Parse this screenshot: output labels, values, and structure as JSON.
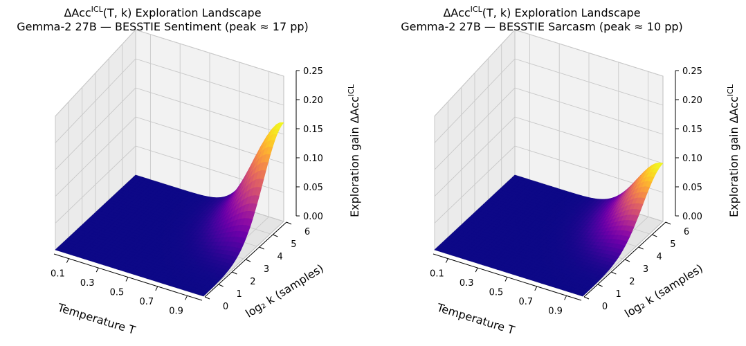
{
  "chart_data": [
    {
      "type": "surface3d",
      "title_line1_prefix": "ΔAcc",
      "title_line1_sup": "ICL",
      "title_line1_suffix": "(T, k) Exploration Landscape",
      "title_line2": "Gemma-2 27B — BESSTIE Sentiment (peak ≈ 17 pp)",
      "xlabel": "Temperature T",
      "ylabel": "log₂ k (samples)",
      "zlabel_prefix": "Exploration gain ΔAcc",
      "zlabel_sup": "ICL",
      "x_ticks": [
        "0.1",
        "0.3",
        "0.5",
        "0.7",
        "0.9"
      ],
      "y_ticks": [
        "0",
        "1",
        "2",
        "3",
        "4",
        "5",
        "6"
      ],
      "z_ticks": [
        "0.00",
        "0.05",
        "0.10",
        "0.15",
        "0.20",
        "0.25"
      ],
      "xlim": [
        0.0,
        1.0
      ],
      "ylim": [
        0,
        6
      ],
      "zlim": [
        0,
        0.25
      ],
      "colormap": "plasma",
      "peak": {
        "T": 1.0,
        "log2k": 6,
        "value": 0.17
      },
      "spread_T": 0.24,
      "spread_log2k": 2.2
    },
    {
      "type": "surface3d",
      "title_line1_prefix": "ΔAcc",
      "title_line1_sup": "ICL",
      "title_line1_suffix": "(T, k) Exploration Landscape",
      "title_line2": "Gemma-2 27B — BESSTIE Sarcasm (peak ≈ 10 pp)",
      "xlabel": "Temperature T",
      "ylabel": "log₂ k (samples)",
      "zlabel_prefix": "Exploration gain ΔAcc",
      "zlabel_sup": "ICL",
      "x_ticks": [
        "0.1",
        "0.3",
        "0.5",
        "0.7",
        "0.9"
      ],
      "y_ticks": [
        "0",
        "1",
        "2",
        "3",
        "4",
        "5",
        "6"
      ],
      "z_ticks": [
        "0.00",
        "0.05",
        "0.10",
        "0.15",
        "0.20",
        "0.25"
      ],
      "xlim": [
        0.0,
        1.0
      ],
      "ylim": [
        0,
        6
      ],
      "zlim": [
        0,
        0.25
      ],
      "colormap": "plasma",
      "peak": {
        "T": 1.0,
        "log2k": 6,
        "value": 0.1
      },
      "spread_T": 0.24,
      "spread_log2k": 2.2
    }
  ]
}
